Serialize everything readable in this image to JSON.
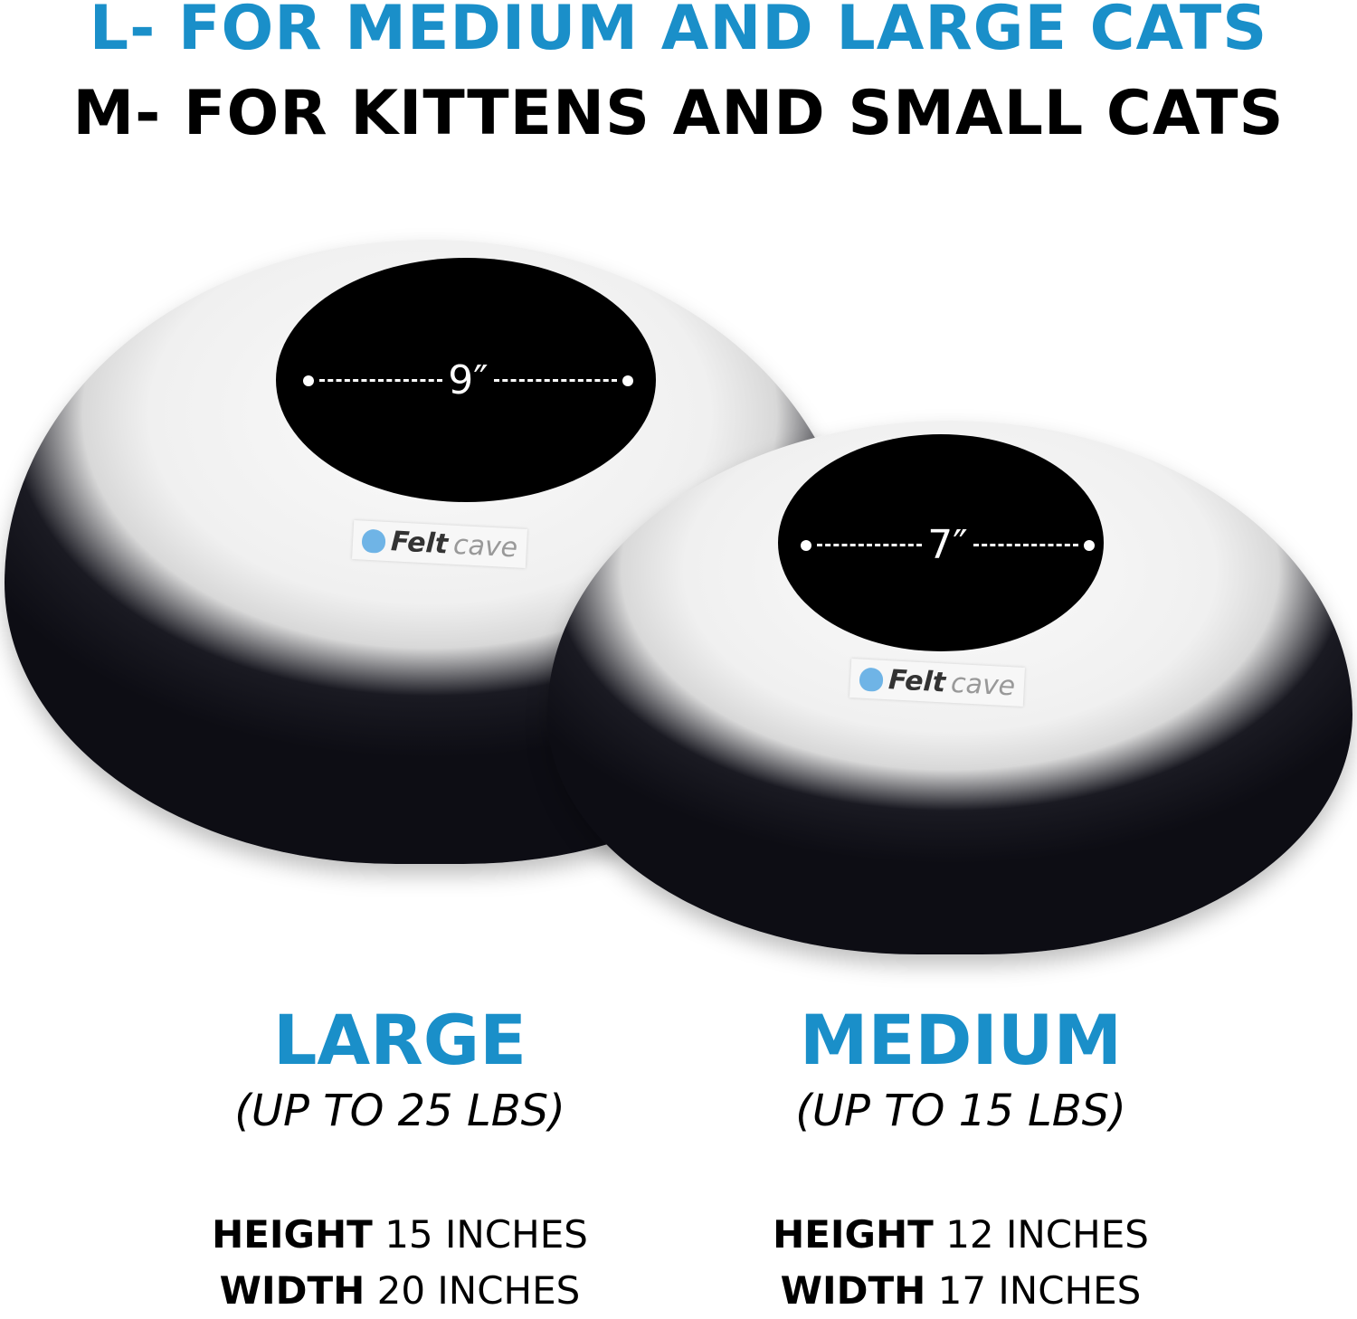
{
  "headline": {
    "line1": "L- FOR MEDIUM AND LARGE CATS",
    "line2": "M- FOR KITTENS AND SMALL CATS"
  },
  "accent_color": "#1a8fc9",
  "products": [
    {
      "name": "LARGE",
      "weight": "(UP TO 25 LBS)",
      "opening": "9″",
      "height_label": "HEIGHT",
      "height_value": "15 INCHES",
      "width_label": "WIDTH",
      "width_value": "20 INCHES"
    },
    {
      "name": "MEDIUM",
      "weight": "(UP TO 15 LBS)",
      "opening": "7″",
      "height_label": "HEIGHT",
      "height_value": "12 INCHES",
      "width_label": "WIDTH",
      "width_value": "17 INCHES"
    }
  ],
  "brand": {
    "part1": "Felt",
    "part2": "cave",
    "icon": "cat-icon"
  }
}
